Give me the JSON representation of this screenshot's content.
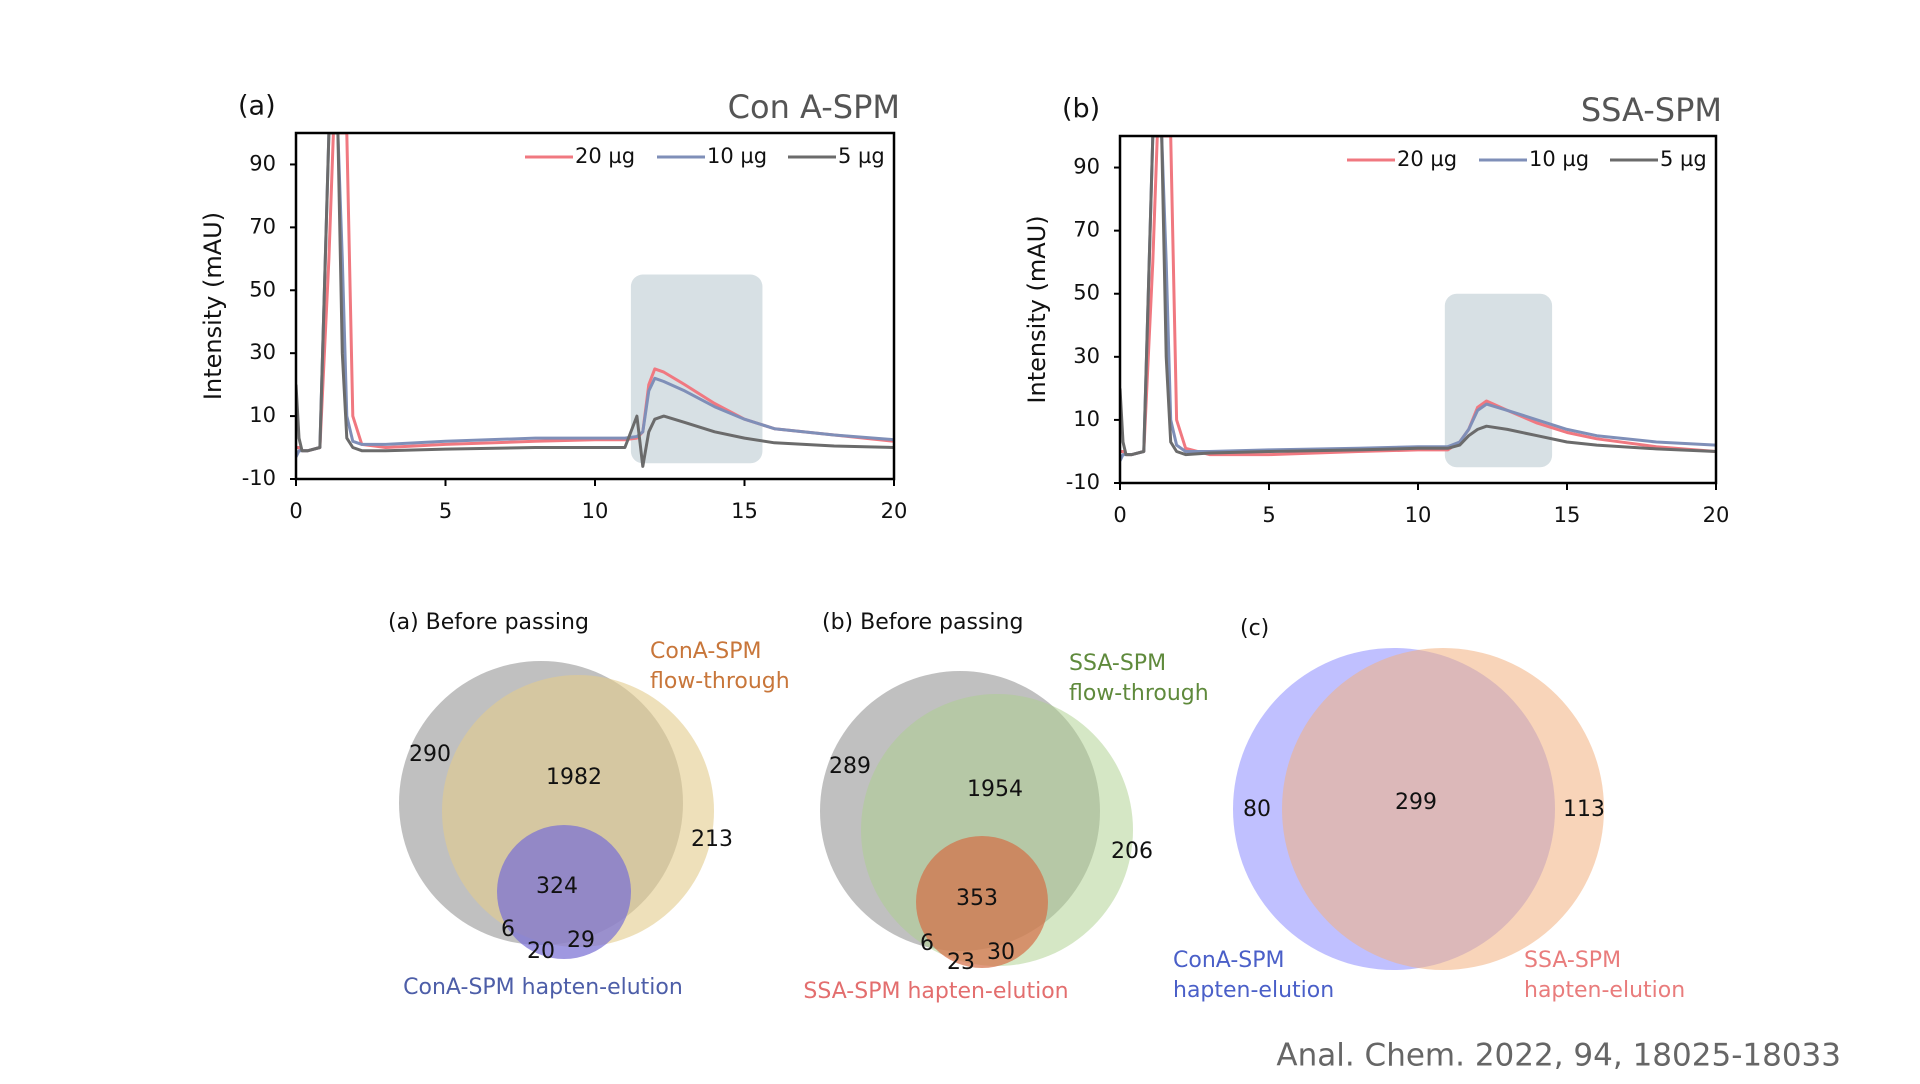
{
  "chart_data": [
    {
      "type": "line",
      "panel": "(a)",
      "title": "Con A-SPM",
      "y_label": "Intensity (mAU)",
      "x": [
        0,
        0.1,
        0.2,
        0.4,
        0.8,
        1.1,
        1.25,
        1.4,
        1.55,
        1.7,
        1.9,
        2.2,
        3,
        5,
        8,
        10,
        11,
        11.4,
        11.6,
        11.8,
        12,
        12.3,
        13,
        14,
        15,
        16,
        18,
        20
      ],
      "series": [
        {
          "name": "20 µg",
          "color": "#f07880",
          "values": [
            0,
            0,
            -1,
            -1,
            0,
            60,
            100,
            100,
            100,
            100,
            10,
            1,
            0,
            1,
            2,
            2.5,
            2.5,
            3,
            5,
            20,
            25,
            24,
            20,
            14,
            9,
            6,
            4,
            2
          ]
        },
        {
          "name": "10 µg",
          "color": "#7f8fb8",
          "values": [
            -3,
            -1,
            -1,
            -1,
            0,
            100,
            100,
            100,
            60,
            10,
            2,
            1,
            1,
            2,
            3,
            3,
            3,
            3.5,
            5,
            18,
            22,
            21,
            18,
            13,
            9,
            6,
            4,
            2.5
          ]
        },
        {
          "name": "5 µg",
          "color": "#6b6b6b",
          "values": [
            20,
            3,
            -1,
            -1,
            0,
            100,
            100,
            100,
            30,
            3,
            0,
            -1,
            -1,
            -0.5,
            0,
            0,
            0,
            10,
            -6,
            5,
            9,
            10,
            8,
            5,
            3,
            1.5,
            0.5,
            0
          ]
        }
      ],
      "xlim": [
        0,
        20
      ],
      "xticks": [
        0,
        5,
        10,
        15,
        20
      ],
      "ylim": [
        -10,
        100
      ],
      "yticks": [
        -10,
        10,
        30,
        50,
        70,
        90
      ],
      "highlight": {
        "xlim": [
          11.2,
          15.6
        ],
        "ylim": [
          -5,
          55
        ]
      }
    },
    {
      "type": "line",
      "panel": "(b)",
      "title": "SSA-SPM",
      "y_label": "Intensity (mAU)",
      "x": [
        0,
        0.1,
        0.2,
        0.4,
        0.8,
        1.1,
        1.25,
        1.4,
        1.55,
        1.7,
        1.9,
        2.2,
        3,
        5,
        8,
        10,
        11,
        11.4,
        11.7,
        12,
        12.3,
        13,
        14,
        15,
        16,
        18,
        20
      ],
      "series": [
        {
          "name": "20 µg",
          "color": "#f07880",
          "values": [
            0,
            0,
            -1,
            -1,
            0,
            60,
            100,
            100,
            100,
            100,
            10,
            1,
            -1,
            -1,
            0,
            0.5,
            0.5,
            3,
            7,
            14,
            16,
            13,
            9,
            6,
            4,
            1.5,
            0
          ]
        },
        {
          "name": "10 µg",
          "color": "#7f8fb8",
          "values": [
            -3,
            -1,
            -1,
            -1,
            0,
            100,
            100,
            100,
            60,
            10,
            2,
            0,
            0,
            0.5,
            1,
            1.5,
            1.5,
            3,
            7,
            13,
            15,
            13,
            10,
            7,
            5,
            3,
            2
          ]
        },
        {
          "name": "5 µg",
          "color": "#6b6b6b",
          "values": [
            20,
            3,
            -1,
            -1,
            0,
            100,
            100,
            100,
            30,
            3,
            0,
            -1,
            -0.5,
            0,
            0.5,
            1,
            1,
            2,
            5,
            7,
            8,
            7,
            5,
            3,
            2,
            0.8,
            0
          ]
        }
      ],
      "xlim": [
        0,
        20
      ],
      "xticks": [
        0,
        5,
        10,
        15,
        20
      ],
      "ylim": [
        -10,
        100
      ],
      "yticks": [
        -10,
        10,
        30,
        50,
        70,
        90
      ],
      "highlight": {
        "xlim": [
          10.9,
          14.5
        ],
        "ylim": [
          -5,
          50
        ]
      }
    }
  ],
  "venns": [
    {
      "title": "(a) Before passing",
      "set_top": [
        "ConA-SPM",
        "flow-through"
      ],
      "set_bottom": "ConA-SPM hapten-elution",
      "numbers": [
        "290",
        "1982",
        "213",
        "324",
        "6",
        "20",
        "29"
      ]
    },
    {
      "title": "(b) Before passing",
      "set_top": [
        "SSA-SPM",
        "flow-through"
      ],
      "set_bottom": "SSA-SPM hapten-elution",
      "numbers": [
        "289",
        "1954",
        "206",
        "353",
        "6",
        "23",
        "30"
      ]
    },
    {
      "title": "(c)",
      "set_left": [
        "ConA-SPM",
        "hapten-elution"
      ],
      "set_right": [
        "SSA-SPM",
        "hapten-elution"
      ],
      "numbers": [
        "80",
        "299",
        "113"
      ]
    }
  ],
  "citation": "Anal. Chem. 2022, 94, 18025-18033"
}
